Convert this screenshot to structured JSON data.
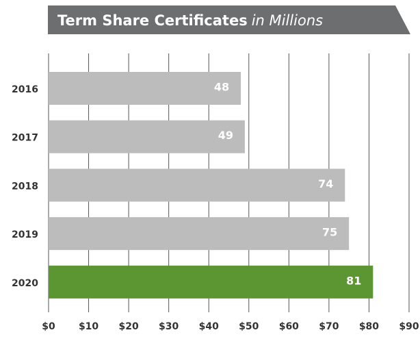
{
  "chart_data": {
    "type": "bar",
    "orientation": "horizontal",
    "title": "Term Share Certificates",
    "subtitle": "in Millions",
    "categories": [
      "2016",
      "2017",
      "2018",
      "2019",
      "2020"
    ],
    "values": [
      48,
      49,
      74,
      75,
      81
    ],
    "colors": [
      "#bcbcbc",
      "#bcbcbc",
      "#bcbcbc",
      "#bcbcbc",
      "#5b9632"
    ],
    "xlim": [
      0,
      90
    ],
    "xticks": [
      {
        "value": 0,
        "label": "$0"
      },
      {
        "value": 10,
        "label": "$10"
      },
      {
        "value": 20,
        "label": "$20"
      },
      {
        "value": 30,
        "label": "$30"
      },
      {
        "value": 40,
        "label": "$40"
      },
      {
        "value": 50,
        "label": "$50"
      },
      {
        "value": 60,
        "label": "$60"
      },
      {
        "value": 70,
        "label": "$70"
      },
      {
        "value": 80,
        "label": "$80"
      },
      {
        "value": 90,
        "label": "$90"
      }
    ],
    "grid": true
  }
}
